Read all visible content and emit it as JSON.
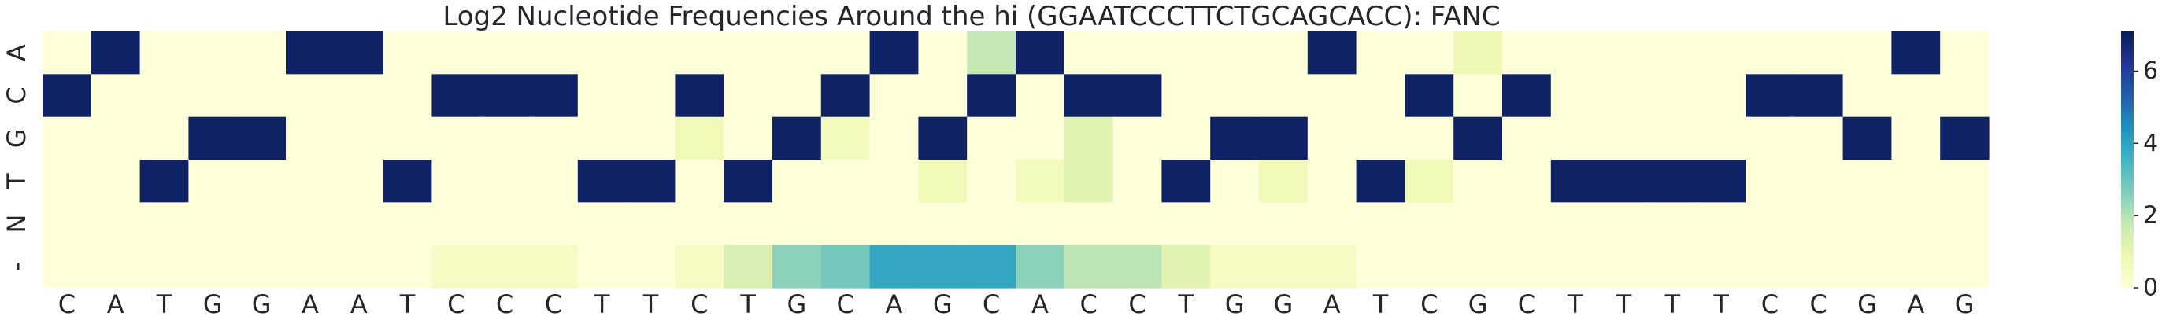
{
  "chart_data": {
    "type": "heatmap",
    "title": "Log2 Nucleotide Frequencies Around the hi (GGAATCCCTTCTGCAGCACC): FANC",
    "xlabel": "",
    "ylabel": "",
    "x_labels": [
      "C",
      "A",
      "T",
      "G",
      "G",
      "A",
      "A",
      "T",
      "C",
      "C",
      "C",
      "T",
      "T",
      "C",
      "T",
      "G",
      "C",
      "A",
      "G",
      "C",
      "A",
      "C",
      "C",
      "T",
      "G",
      "G",
      "A",
      "T",
      "C",
      "G",
      "C",
      "T",
      "T",
      "T",
      "T",
      "C",
      "C",
      "G",
      "A",
      "G"
    ],
    "y_labels": [
      "A",
      "C",
      "G",
      "T",
      "N",
      "-"
    ],
    "colormap": "YlGnBu",
    "vmin": 0,
    "vmax": 7.1,
    "colorbar_ticks": [
      "0",
      "2",
      "4",
      "6"
    ],
    "colorbar_tick_values": [
      0,
      2,
      4,
      6
    ],
    "values": [
      [
        0,
        6.9,
        0,
        0,
        0,
        6.9,
        6.9,
        0,
        0,
        0,
        0,
        0,
        0,
        0,
        0,
        0,
        0,
        6.9,
        0,
        1.8,
        6.9,
        0,
        0,
        0,
        0,
        0,
        6.9,
        0,
        0,
        0.8,
        0,
        0,
        0,
        0,
        0,
        0,
        0,
        0,
        6.9,
        0
      ],
      [
        6.9,
        0,
        0,
        0,
        0,
        0,
        0,
        0,
        6.9,
        6.9,
        6.9,
        0,
        0,
        6.9,
        0,
        0,
        6.9,
        0,
        0,
        6.9,
        0,
        6.9,
        6.9,
        0,
        0,
        0,
        0,
        0,
        6.9,
        0,
        6.9,
        0,
        0,
        0,
        0,
        6.9,
        6.9,
        0,
        0,
        0
      ],
      [
        0,
        0,
        0,
        6.9,
        6.9,
        0,
        0,
        0,
        0,
        0,
        0,
        0,
        0,
        0.7,
        0,
        6.9,
        0.6,
        0,
        6.9,
        0,
        0,
        1.2,
        0,
        0,
        6.9,
        6.9,
        0,
        0,
        0,
        6.9,
        0,
        0,
        0,
        0,
        0,
        0,
        0,
        6.9,
        0,
        6.9
      ],
      [
        0,
        0,
        6.9,
        0,
        0,
        0,
        0,
        6.9,
        0,
        0,
        0,
        6.9,
        6.9,
        0,
        6.9,
        0,
        0,
        0,
        0.7,
        0,
        0.6,
        1.2,
        0,
        6.9,
        0,
        0.7,
        0,
        6.9,
        0.7,
        0,
        0,
        6.9,
        6.9,
        6.9,
        6.9,
        0,
        0,
        0,
        0,
        0
      ],
      [
        0,
        0,
        0,
        0,
        0,
        0,
        0,
        0,
        0,
        0,
        0,
        0,
        0,
        0,
        0,
        0,
        0,
        0,
        0,
        0,
        0,
        0,
        0,
        0,
        0,
        0,
        0,
        0,
        0,
        0,
        0,
        0,
        0,
        0,
        0,
        0,
        0,
        0,
        0,
        0
      ],
      [
        0,
        0,
        0,
        0,
        0,
        0,
        0,
        0,
        0.5,
        0.5,
        0.5,
        0,
        0,
        0.5,
        1.4,
        2.5,
        2.8,
        3.9,
        3.9,
        3.9,
        2.5,
        1.9,
        1.9,
        1.2,
        0.5,
        0.5,
        0.5,
        0,
        0,
        0,
        0,
        0,
        0,
        0,
        0,
        0,
        0,
        0,
        0,
        0
      ]
    ]
  }
}
